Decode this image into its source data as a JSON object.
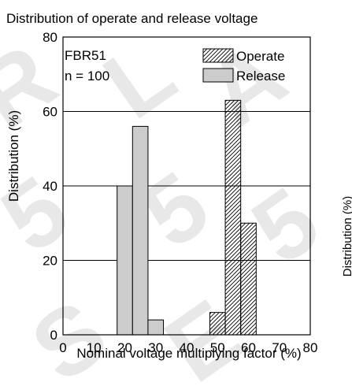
{
  "chart_data": {
    "type": "bar",
    "title": "Distribution of operate and release voltage",
    "xlabel": "Nominal voltage multiplying factor (%)",
    "ylabel": "Distribution (%)",
    "xlim": [
      0,
      80
    ],
    "ylim": [
      0,
      80
    ],
    "xticks": [
      "0",
      "10",
      "20",
      "30",
      "40",
      "50",
      "60",
      "70",
      "80"
    ],
    "yticks": [
      "0",
      "20",
      "40",
      "60",
      "80"
    ],
    "grid": "horizontal",
    "annotations": [
      "FBR51",
      "n = 100"
    ],
    "legend_placement": "top-right",
    "bin_width": 5,
    "series": [
      {
        "name": "Release",
        "fill": "#cccccc",
        "pattern": "solid",
        "bins": [
          {
            "x_start": 17.5,
            "value": 40
          },
          {
            "x_start": 22.5,
            "value": 56
          },
          {
            "x_start": 27.5,
            "value": 4
          }
        ]
      },
      {
        "name": "Operate",
        "fill": "#ffffff",
        "pattern": "diagonal-hatch",
        "bins": [
          {
            "x_start": 47.5,
            "value": 6
          },
          {
            "x_start": 52.5,
            "value": 63
          },
          {
            "x_start": 57.5,
            "value": 30
          }
        ]
      }
    ],
    "cutoff_label": "Distribution (%)"
  }
}
